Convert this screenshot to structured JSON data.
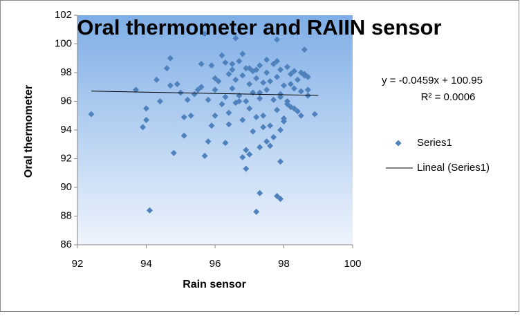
{
  "chart_data": {
    "type": "scatter",
    "title": "Oral thermometer and RAIIN sensor",
    "x_label": "Rain sensor",
    "y_label": "Oral thermometer",
    "xlim": [
      92,
      100
    ],
    "xticks": [
      92,
      94,
      96,
      98,
      100
    ],
    "ylim": [
      86,
      102
    ],
    "yticks": [
      86,
      88,
      90,
      92,
      94,
      96,
      98,
      100,
      102
    ],
    "legend": "right",
    "series": [
      {
        "name": "Series1",
        "color": "#4f81bd",
        "x": [
          92.4,
          93.7,
          93.9,
          94.0,
          94.0,
          94.1,
          94.3,
          94.4,
          94.6,
          94.7,
          94.7,
          94.8,
          94.9,
          95.0,
          95.1,
          95.1,
          95.3,
          95.2,
          95.4,
          95.5,
          95.6,
          95.7,
          95.7,
          95.8,
          95.9,
          95.9,
          96.0,
          96.2,
          96.6,
          96.8,
          97.2,
          97.3,
          97.8,
          97.9,
          97.9,
          97.8,
          98.6,
          98.9,
          96.9,
          96.8,
          97.0,
          97.3,
          98.5,
          98.3,
          97.5,
          95.6,
          95.8,
          96.0,
          96.1,
          96.2,
          96.3,
          96.3,
          96.4,
          96.4,
          96.5,
          96.5,
          96.6,
          96.6,
          96.7,
          96.7,
          96.8,
          96.8,
          96.9,
          96.9,
          97.0,
          97.0,
          97.1,
          97.1,
          97.2,
          97.2,
          97.3,
          97.3,
          97.4,
          97.4,
          97.5,
          97.5,
          97.6,
          97.6,
          97.7,
          97.7,
          97.8,
          97.8,
          97.9,
          97.9,
          98.0,
          98.0,
          98.1,
          98.1,
          98.2,
          98.2,
          98.3,
          98.3,
          98.4,
          98.4,
          98.5,
          98.5,
          98.6,
          98.7,
          98.7,
          96.3,
          96.4,
          96.9,
          97.1,
          97.4,
          97.6,
          97.7,
          97.9,
          98.0,
          96.5,
          97.0,
          97.2,
          97.5,
          98.2,
          98.6,
          98.7,
          97.8,
          96.0,
          96.7,
          97.3,
          97.9,
          98.1
        ],
        "values": [
          95.1,
          96.8,
          94.2,
          95.5,
          94.7,
          88.4,
          97.5,
          96.0,
          98.3,
          99.0,
          97.1,
          92.4,
          97.2,
          96.6,
          94.9,
          93.6,
          95.0,
          96.1,
          96.5,
          96.8,
          98.6,
          92.2,
          100.7,
          93.2,
          94.3,
          98.5,
          95.0,
          99.2,
          100.4,
          99.3,
          88.3,
          89.6,
          89.4,
          89.2,
          91.8,
          100.3,
          99.6,
          95.1,
          91.3,
          92.1,
          92.3,
          92.8,
          95.0,
          95.5,
          93.2,
          97.0,
          96.1,
          96.8,
          97.4,
          95.8,
          98.7,
          96.3,
          97.9,
          95.2,
          96.9,
          98.2,
          97.5,
          95.9,
          98.8,
          96.4,
          97.8,
          94.7,
          98.3,
          96.0,
          97.2,
          95.5,
          98.1,
          96.6,
          97.6,
          94.9,
          98.5,
          96.2,
          97.3,
          95.0,
          98.0,
          96.8,
          97.4,
          94.3,
          98.6,
          96.1,
          97.7,
          95.4,
          98.2,
          96.5,
          97.1,
          94.8,
          98.4,
          96.0,
          97.9,
          95.6,
          98.1,
          96.9,
          97.5,
          95.3,
          98.0,
          96.7,
          97.8,
          96.4,
          97.7,
          93.1,
          94.4,
          92.6,
          93.9,
          94.2,
          92.9,
          93.5,
          94.0,
          94.6,
          98.6,
          98.3,
          98.2,
          98.9,
          97.2,
          97.9,
          96.8,
          98.8,
          97.6,
          96.0,
          96.6,
          96.3,
          95.8
        ]
      }
    ],
    "trendline": {
      "name": "Lineal (Series1)",
      "color": "#000000",
      "x": [
        92.4,
        99.0
      ],
      "values": [
        96.71,
        96.41
      ],
      "equation": "y = -0.0459x + 100.95",
      "r_squared": "R² = 0.0006"
    }
  }
}
